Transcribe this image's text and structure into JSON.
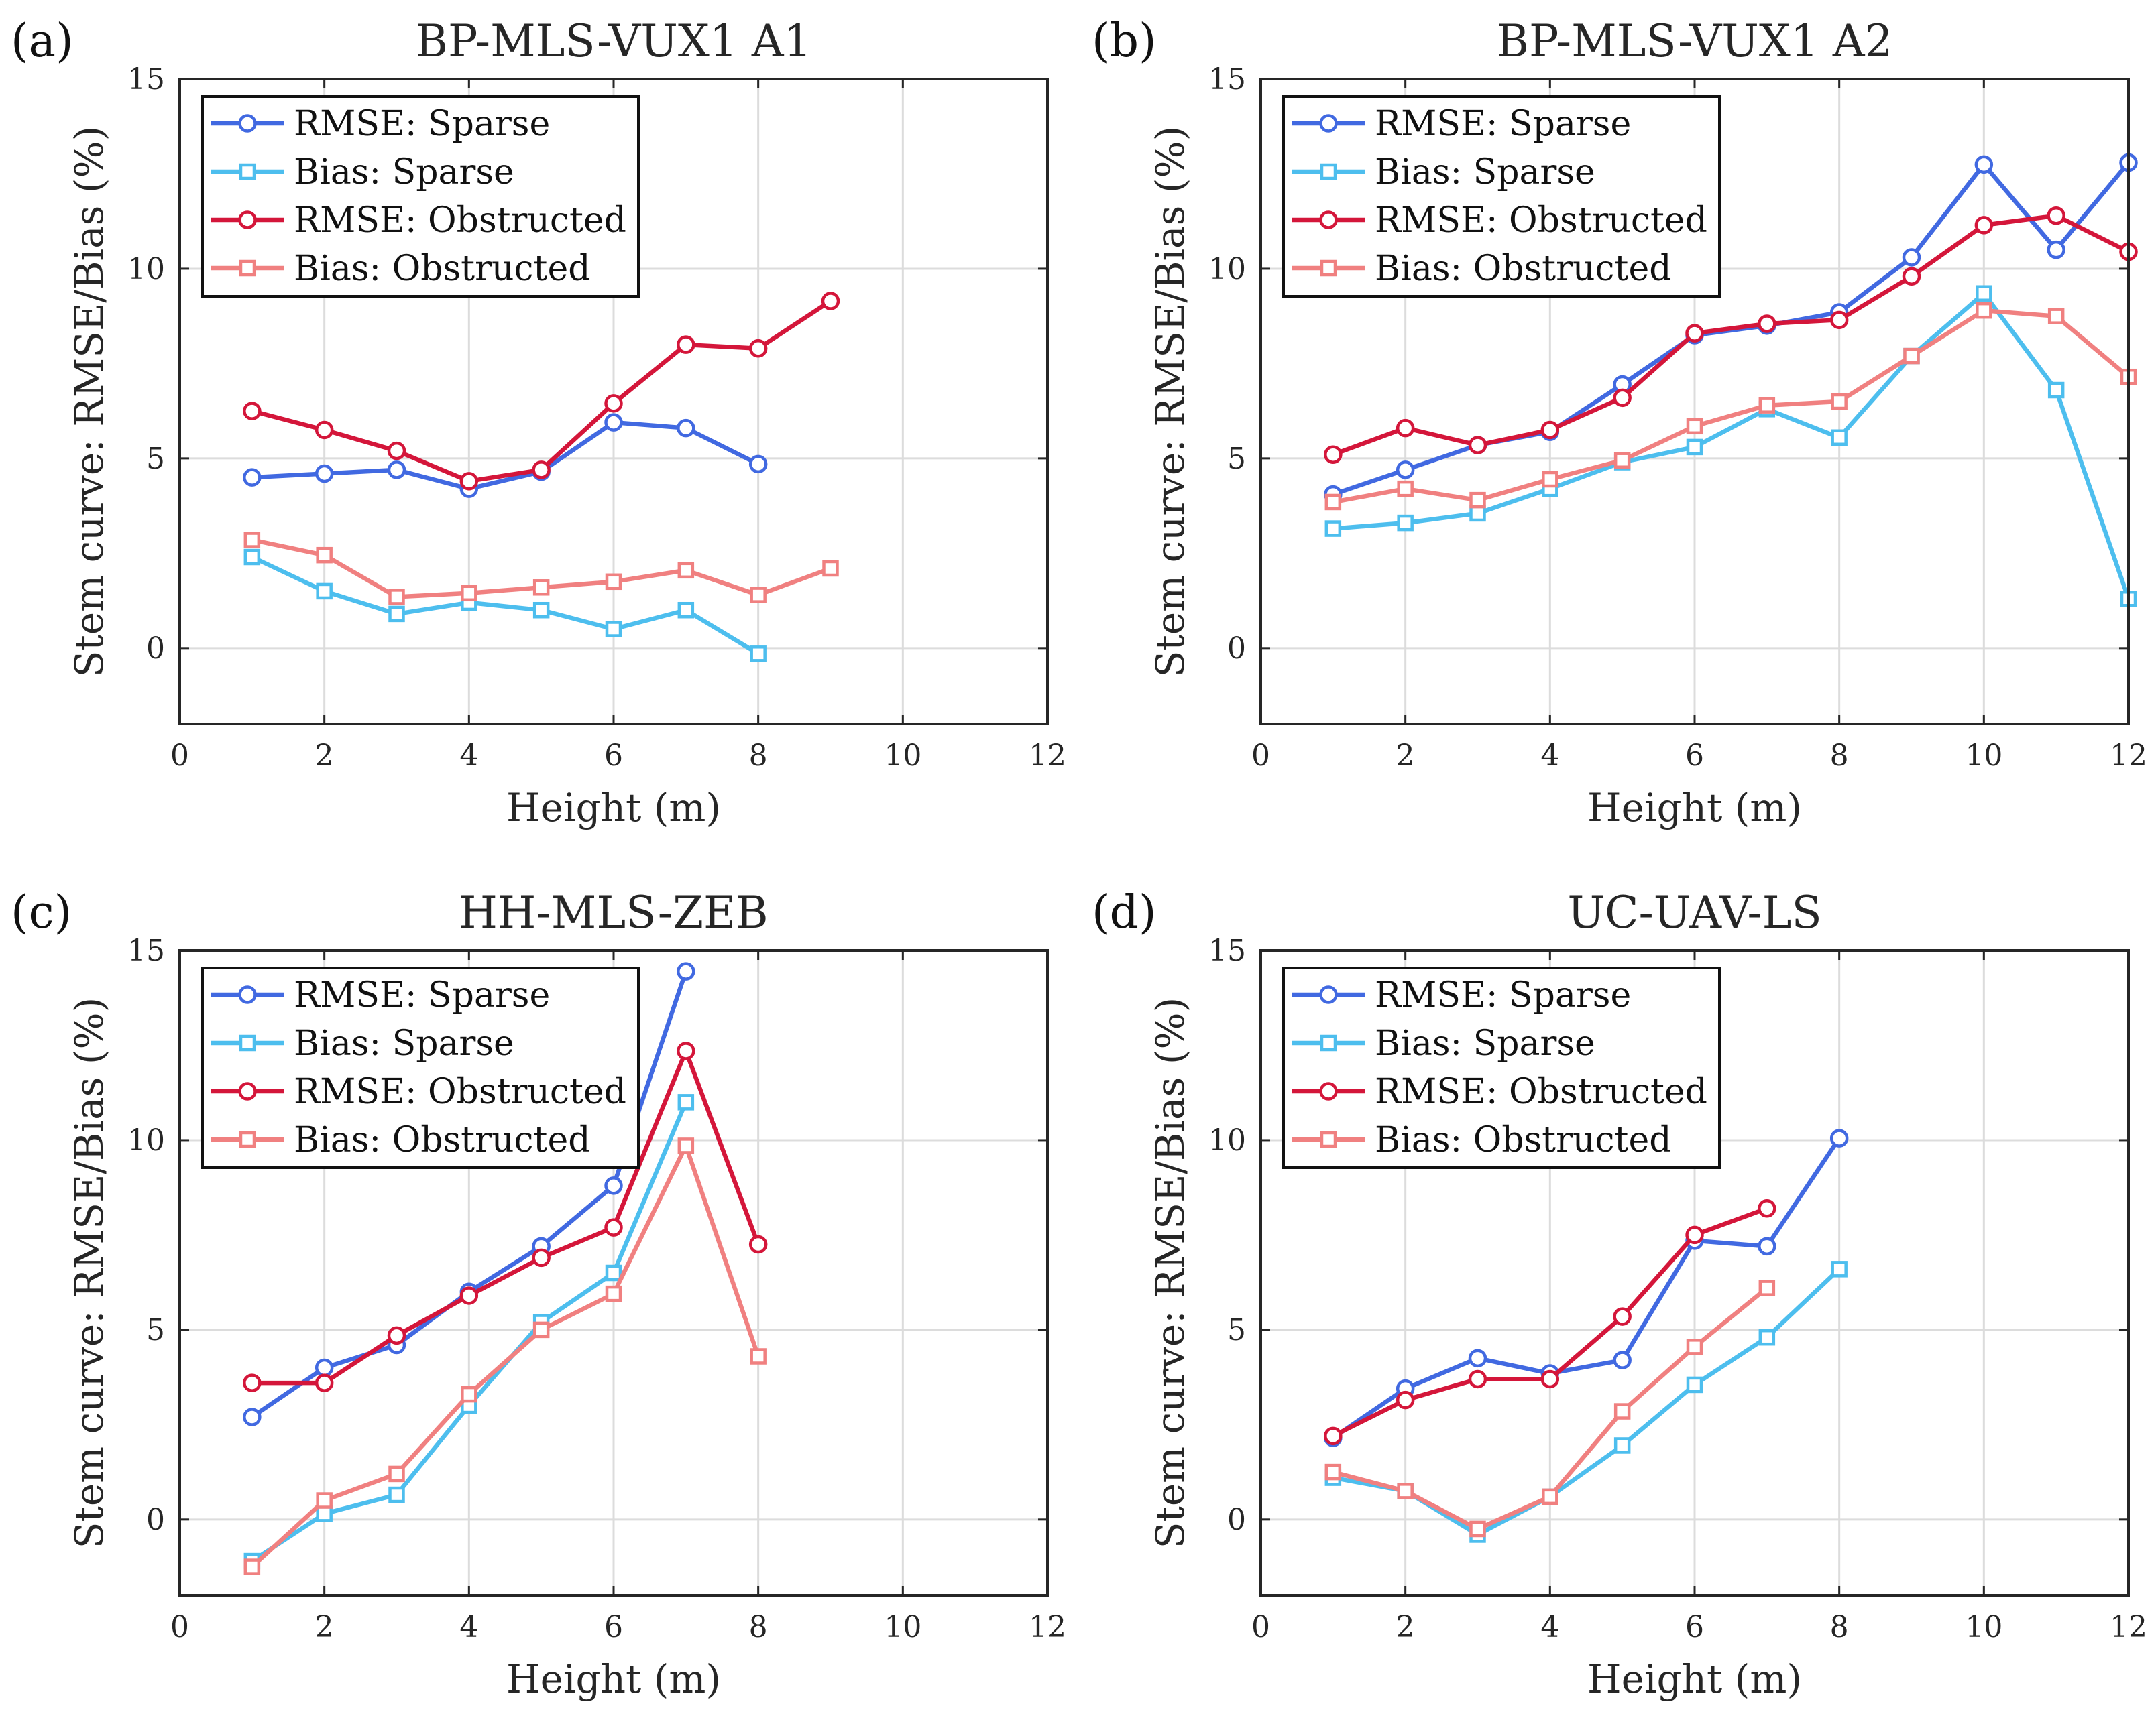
{
  "colors": {
    "rmse_sparse": "#4169E1",
    "bias_sparse": "#4DBEEE",
    "rmse_obstructed": "#D4163A",
    "bias_obstructed": "#F08080",
    "grid": "#dcdcdc",
    "axis": "#262626"
  },
  "legend_labels": [
    "RMSE: Sparse",
    "Bias:  Sparse",
    "RMSE: Obstructed",
    "Bias:  Obstructed"
  ],
  "chart_data": [
    {
      "type": "line",
      "panel_label": "(a)",
      "title": "BP-MLS-VUX1 A1",
      "xlabel": "Height (m)",
      "ylabel": "Stem curve:  RMSE/Bias (%)",
      "xlim": [
        0,
        12
      ],
      "ylim": [
        -2,
        15
      ],
      "xticks": [
        0,
        2,
        4,
        6,
        8,
        10,
        12
      ],
      "yticks": [
        0,
        5,
        10,
        15
      ],
      "grid": true,
      "legend_position": "top-left",
      "series": [
        {
          "name": "RMSE: Sparse",
          "marker": "circle",
          "x": [
            1,
            2,
            3,
            4,
            5,
            6,
            7,
            8
          ],
          "values": [
            4.5,
            4.6,
            4.7,
            4.2,
            4.65,
            5.95,
            5.8,
            4.85
          ]
        },
        {
          "name": "Bias:  Sparse",
          "marker": "square",
          "x": [
            1,
            2,
            3,
            4,
            5,
            6,
            7,
            8
          ],
          "values": [
            2.4,
            1.5,
            0.9,
            1.2,
            1.0,
            0.5,
            1.0,
            -0.15
          ]
        },
        {
          "name": "RMSE: Obstructed",
          "marker": "circle",
          "x": [
            1,
            2,
            3,
            4,
            5,
            6,
            7,
            8,
            9
          ],
          "values": [
            6.25,
            5.75,
            5.2,
            4.4,
            4.7,
            6.45,
            8.0,
            7.9,
            9.15
          ]
        },
        {
          "name": "Bias:  Obstructed",
          "marker": "square",
          "x": [
            1,
            2,
            3,
            4,
            5,
            6,
            7,
            8,
            9
          ],
          "values": [
            2.85,
            2.45,
            1.35,
            1.45,
            1.6,
            1.75,
            2.05,
            1.4,
            2.1
          ]
        }
      ]
    },
    {
      "type": "line",
      "panel_label": "(b)",
      "title": "BP-MLS-VUX1 A2",
      "xlabel": "Height (m)",
      "ylabel": "Stem curve:  RMSE/Bias (%)",
      "xlim": [
        0,
        12
      ],
      "ylim": [
        -2,
        15
      ],
      "xticks": [
        0,
        2,
        4,
        6,
        8,
        10,
        12
      ],
      "yticks": [
        0,
        5,
        10,
        15
      ],
      "grid": true,
      "legend_position": "top-left",
      "series": [
        {
          "name": "RMSE: Sparse",
          "marker": "circle",
          "x": [
            1,
            2,
            3,
            4,
            5,
            6,
            7,
            8,
            9,
            10,
            11,
            12
          ],
          "values": [
            4.05,
            4.7,
            5.35,
            5.7,
            6.95,
            8.25,
            8.5,
            8.85,
            10.3,
            12.75,
            10.5,
            12.8
          ]
        },
        {
          "name": "Bias:  Sparse",
          "marker": "square",
          "x": [
            1,
            2,
            3,
            4,
            5,
            6,
            7,
            8,
            9,
            10,
            11,
            12
          ],
          "values": [
            3.15,
            3.3,
            3.55,
            4.2,
            4.9,
            5.3,
            6.3,
            5.55,
            7.7,
            9.35,
            6.8,
            1.3
          ]
        },
        {
          "name": "RMSE: Obstructed",
          "marker": "circle",
          "x": [
            1,
            2,
            3,
            4,
            5,
            6,
            7,
            8,
            9,
            10,
            11,
            12
          ],
          "values": [
            5.1,
            5.8,
            5.35,
            5.75,
            6.6,
            8.3,
            8.55,
            8.65,
            9.8,
            11.15,
            11.4,
            10.45
          ]
        },
        {
          "name": "Bias:  Obstructed",
          "marker": "square",
          "x": [
            1,
            2,
            3,
            4,
            5,
            6,
            7,
            8,
            9,
            10,
            11,
            12
          ],
          "values": [
            3.85,
            4.2,
            3.9,
            4.45,
            4.95,
            5.85,
            6.4,
            6.5,
            7.7,
            8.9,
            8.75,
            7.15
          ]
        }
      ]
    },
    {
      "type": "line",
      "panel_label": "(c)",
      "title": "HH-MLS-ZEB",
      "xlabel": "Height (m)",
      "ylabel": "Stem curve:  RMSE/Bias (%)",
      "xlim": [
        0,
        12
      ],
      "ylim": [
        -2,
        15
      ],
      "xticks": [
        0,
        2,
        4,
        6,
        8,
        10,
        12
      ],
      "yticks": [
        0,
        5,
        10,
        15
      ],
      "grid": true,
      "legend_position": "top-left",
      "series": [
        {
          "name": "RMSE: Sparse",
          "marker": "circle",
          "x": [
            1,
            2,
            3,
            4,
            5,
            6,
            7
          ],
          "values": [
            2.7,
            4.0,
            4.6,
            6.0,
            7.2,
            8.8,
            14.45
          ]
        },
        {
          "name": "Bias:  Sparse",
          "marker": "square",
          "x": [
            1,
            2,
            3,
            4,
            5,
            6,
            7
          ],
          "values": [
            -1.1,
            0.15,
            0.65,
            3.0,
            5.2,
            6.5,
            11.0
          ]
        },
        {
          "name": "RMSE: Obstructed",
          "marker": "circle",
          "x": [
            1,
            2,
            3,
            4,
            5,
            6,
            7,
            8
          ],
          "values": [
            3.6,
            3.6,
            4.85,
            5.9,
            6.9,
            7.7,
            12.35,
            7.25
          ]
        },
        {
          "name": "Bias:  Obstructed",
          "marker": "square",
          "x": [
            1,
            2,
            3,
            4,
            5,
            6,
            7,
            8
          ],
          "values": [
            -1.25,
            0.5,
            1.2,
            3.3,
            5.0,
            5.95,
            9.85,
            4.3
          ]
        }
      ]
    },
    {
      "type": "line",
      "panel_label": "(d)",
      "title": "UC-UAV-LS",
      "xlabel": "Height (m)",
      "ylabel": "Stem curve:  RMSE/Bias (%)",
      "xlim": [
        0,
        12
      ],
      "ylim": [
        -2,
        15
      ],
      "xticks": [
        0,
        2,
        4,
        6,
        8,
        10,
        12
      ],
      "yticks": [
        0,
        5,
        10,
        15
      ],
      "grid": true,
      "legend_position": "top-left",
      "series": [
        {
          "name": "RMSE: Sparse",
          "marker": "circle",
          "x": [
            1,
            2,
            3,
            4,
            5,
            6,
            7,
            8
          ],
          "values": [
            2.15,
            3.45,
            4.25,
            3.85,
            4.2,
            7.35,
            7.2,
            10.05
          ]
        },
        {
          "name": "Bias:  Sparse",
          "marker": "square",
          "x": [
            1,
            2,
            3,
            4,
            5,
            6,
            7,
            8
          ],
          "values": [
            1.1,
            0.75,
            -0.4,
            0.6,
            1.95,
            3.55,
            4.8,
            6.6
          ]
        },
        {
          "name": "RMSE: Obstructed",
          "marker": "circle",
          "x": [
            1,
            2,
            3,
            4,
            5,
            6,
            7
          ],
          "values": [
            2.2,
            3.15,
            3.7,
            3.7,
            5.35,
            7.5,
            8.2
          ]
        },
        {
          "name": "Bias:  Obstructed",
          "marker": "square",
          "x": [
            1,
            2,
            3,
            4,
            5,
            6,
            7
          ],
          "values": [
            1.25,
            0.75,
            -0.25,
            0.6,
            2.85,
            4.55,
            6.1
          ]
        }
      ]
    }
  ]
}
